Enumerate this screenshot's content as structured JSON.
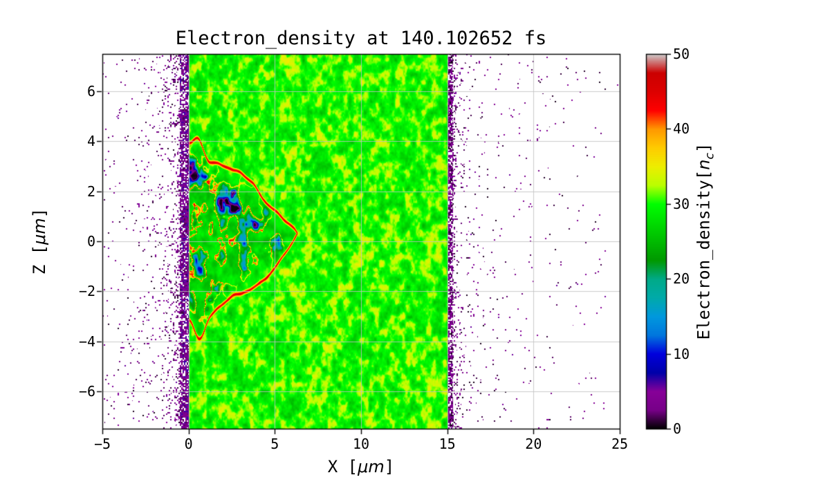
{
  "figure": {
    "background": "#ffffff"
  },
  "chart_data": {
    "type": "heatmap",
    "title": "Electron_density at 140.102652 fs",
    "xlabel_prefix": "X [",
    "xlabel_unit": "μm",
    "xlabel_suffix": "]",
    "ylabel_prefix": "Z [",
    "ylabel_unit": "μm",
    "ylabel_suffix": "]",
    "xlim": [
      -5,
      25
    ],
    "ylim": [
      -7.5,
      7.5
    ],
    "clim": [
      0,
      50
    ],
    "xticks": [
      {
        "value": -5,
        "label": "−5"
      },
      {
        "value": 0,
        "label": "0"
      },
      {
        "value": 5,
        "label": "5"
      },
      {
        "value": 10,
        "label": "10"
      },
      {
        "value": 15,
        "label": "15"
      },
      {
        "value": 20,
        "label": "20"
      },
      {
        "value": 25,
        "label": "25"
      }
    ],
    "yticks": [
      {
        "value": -6,
        "label": "−6"
      },
      {
        "value": -4,
        "label": "−4"
      },
      {
        "value": -2,
        "label": "−2"
      },
      {
        "value": 0,
        "label": "0"
      },
      {
        "value": 2,
        "label": "2"
      },
      {
        "value": 4,
        "label": "4"
      },
      {
        "value": 6,
        "label": "6"
      }
    ],
    "grid": true,
    "grid_color": "#c2c2c2",
    "colormap": "nipy_spectral",
    "colormap_stops": [
      [
        0.0,
        0,
        0,
        0
      ],
      [
        0.05,
        119,
        0,
        136
      ],
      [
        0.1,
        136,
        0,
        153
      ],
      [
        0.15,
        0,
        0,
        170
      ],
      [
        0.2,
        0,
        0,
        221
      ],
      [
        0.25,
        0,
        119,
        221
      ],
      [
        0.3,
        0,
        153,
        221
      ],
      [
        0.35,
        0,
        170,
        170
      ],
      [
        0.4,
        0,
        170,
        136
      ],
      [
        0.45,
        0,
        153,
        0
      ],
      [
        0.5,
        0,
        187,
        0
      ],
      [
        0.55,
        0,
        221,
        0
      ],
      [
        0.6,
        0,
        255,
        0
      ],
      [
        0.65,
        187,
        255,
        0
      ],
      [
        0.7,
        238,
        238,
        0
      ],
      [
        0.75,
        255,
        204,
        0
      ],
      [
        0.8,
        255,
        153,
        0
      ],
      [
        0.85,
        255,
        0,
        0
      ],
      [
        0.9,
        221,
        0,
        0
      ],
      [
        0.95,
        204,
        0,
        0
      ],
      [
        1.0,
        204,
        204,
        204
      ]
    ],
    "colorbar": {
      "ticks": [
        {
          "value": 0,
          "label": "0"
        },
        {
          "value": 10,
          "label": "10"
        },
        {
          "value": 20,
          "label": "20"
        },
        {
          "value": 30,
          "label": "30"
        },
        {
          "value": 40,
          "label": "40"
        },
        {
          "value": 50,
          "label": "50"
        }
      ],
      "label_prefix": "Electron_density[",
      "label_n": "n",
      "label_sub": "c",
      "label_suffix": "]"
    },
    "features": {
      "plasma_slab": {
        "x_min": 0,
        "x_max": 15,
        "mean_density_nc": 30,
        "noise_amplitude_nc": 6.5,
        "color": "#00ff00"
      },
      "drilled_channel": {
        "x_min": 0,
        "x_tip": 6.0,
        "z_min": -3.6,
        "z_max": 4.0,
        "core_min_density_nc": 1,
        "rim_density_nc": 43,
        "rim_color": "#ff0000",
        "core_color": "#0000dd"
      },
      "left_vacuum_speckle": {
        "x_min": -5,
        "x_max": 0,
        "max_density_nc": 6,
        "color": "#000000"
      },
      "right_vacuum_speckle": {
        "x_min": 15,
        "x_max": 24.5,
        "max_density_nc": 3,
        "color": "#000000"
      }
    }
  }
}
